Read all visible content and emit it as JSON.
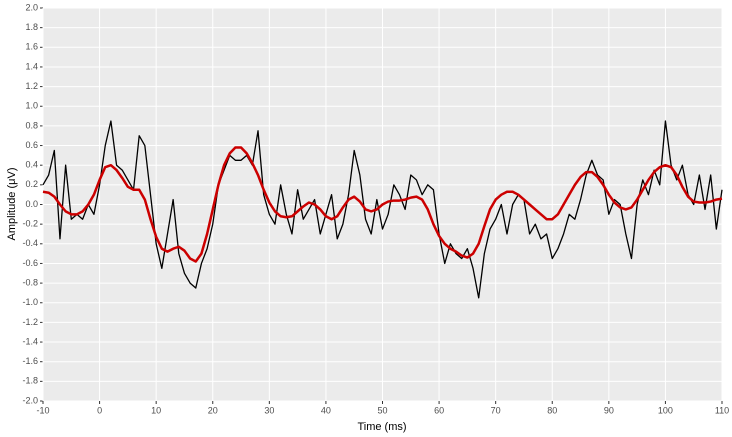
{
  "chart_data": {
    "type": "line",
    "x_label": "Time (ms)",
    "y_label": "Amplitude (μV)",
    "x": [
      -10,
      -9,
      -8,
      -7,
      -6,
      -5,
      -4,
      -3,
      -2,
      -1,
      0,
      1,
      2,
      3,
      4,
      5,
      6,
      7,
      8,
      9,
      10,
      11,
      12,
      13,
      14,
      15,
      16,
      17,
      18,
      19,
      20,
      21,
      22,
      23,
      24,
      25,
      26,
      27,
      28,
      29,
      30,
      31,
      32,
      33,
      34,
      35,
      36,
      37,
      38,
      39,
      40,
      41,
      42,
      43,
      44,
      45,
      46,
      47,
      48,
      49,
      50,
      51,
      52,
      53,
      54,
      55,
      56,
      57,
      58,
      59,
      60,
      61,
      62,
      63,
      64,
      65,
      66,
      67,
      68,
      69,
      70,
      71,
      72,
      73,
      74,
      75,
      76,
      77,
      78,
      79,
      80,
      81,
      82,
      83,
      84,
      85,
      86,
      87,
      88,
      89,
      90,
      91,
      92,
      93,
      94,
      95,
      96,
      97,
      98,
      99,
      100,
      101,
      102,
      103,
      104,
      105,
      106,
      107,
      108,
      109,
      110
    ],
    "series": [
      {
        "color": "#000000",
        "values": [
          0.2,
          0.3,
          0.55,
          -0.35,
          0.4,
          -0.15,
          -0.1,
          -0.15,
          0.0,
          -0.1,
          0.2,
          0.6,
          0.85,
          0.4,
          0.35,
          0.25,
          0.15,
          0.7,
          0.6,
          0.1,
          -0.4,
          -0.65,
          -0.3,
          0.05,
          -0.5,
          -0.7,
          -0.8,
          -0.85,
          -0.6,
          -0.45,
          -0.2,
          0.2,
          0.35,
          0.5,
          0.45,
          0.45,
          0.5,
          0.4,
          0.75,
          0.1,
          -0.1,
          -0.2,
          0.2,
          -0.1,
          -0.3,
          0.15,
          -0.15,
          -0.05,
          0.05,
          -0.3,
          -0.1,
          0.1,
          -0.35,
          -0.2,
          0.1,
          0.55,
          0.3,
          -0.15,
          -0.3,
          0.05,
          -0.25,
          -0.1,
          0.2,
          0.1,
          -0.05,
          0.3,
          0.25,
          0.1,
          0.2,
          0.15,
          -0.3,
          -0.6,
          -0.4,
          -0.5,
          -0.55,
          -0.45,
          -0.65,
          -0.95,
          -0.5,
          -0.25,
          -0.15,
          0.0,
          -0.3,
          0.0,
          0.1,
          0.05,
          -0.3,
          -0.2,
          -0.35,
          -0.3,
          -0.55,
          -0.45,
          -0.3,
          -0.1,
          -0.15,
          0.05,
          0.3,
          0.45,
          0.3,
          0.25,
          -0.1,
          0.05,
          0.0,
          -0.3,
          -0.55,
          0.0,
          0.25,
          0.1,
          0.35,
          0.2,
          0.85,
          0.4,
          0.25,
          0.4,
          0.1,
          0.0,
          0.3,
          -0.05,
          0.3,
          -0.25,
          0.15
        ]
      },
      {
        "color": "#cc0000",
        "values": [
          0.13,
          0.12,
          0.08,
          0.0,
          -0.07,
          -0.1,
          -0.1,
          -0.07,
          0.0,
          0.1,
          0.25,
          0.38,
          0.4,
          0.35,
          0.27,
          0.18,
          0.15,
          0.15,
          0.05,
          -0.15,
          -0.33,
          -0.45,
          -0.48,
          -0.45,
          -0.43,
          -0.47,
          -0.55,
          -0.58,
          -0.5,
          -0.3,
          -0.05,
          0.2,
          0.4,
          0.52,
          0.58,
          0.58,
          0.52,
          0.42,
          0.3,
          0.15,
          0.02,
          -0.07,
          -0.12,
          -0.13,
          -0.12,
          -0.07,
          -0.02,
          0.02,
          0.0,
          -0.05,
          -0.12,
          -0.15,
          -0.12,
          -0.03,
          0.05,
          0.08,
          0.03,
          -0.05,
          -0.07,
          -0.05,
          0.0,
          0.03,
          0.04,
          0.04,
          0.05,
          0.07,
          0.08,
          0.05,
          -0.05,
          -0.2,
          -0.32,
          -0.4,
          -0.45,
          -0.48,
          -0.52,
          -0.54,
          -0.5,
          -0.4,
          -0.22,
          -0.05,
          0.05,
          0.1,
          0.13,
          0.13,
          0.1,
          0.05,
          0.0,
          -0.05,
          -0.1,
          -0.15,
          -0.15,
          -0.1,
          0.0,
          0.1,
          0.2,
          0.28,
          0.33,
          0.33,
          0.28,
          0.2,
          0.1,
          0.02,
          -0.03,
          -0.05,
          -0.03,
          0.05,
          0.15,
          0.25,
          0.33,
          0.38,
          0.4,
          0.38,
          0.3,
          0.18,
          0.08,
          0.03,
          0.02,
          0.02,
          0.03,
          0.05,
          0.06
        ]
      }
    ],
    "xlim": [
      -10,
      110
    ],
    "xticks": [
      -10,
      0,
      10,
      20,
      30,
      40,
      50,
      60,
      70,
      80,
      90,
      100,
      110
    ],
    "ylim": [
      -2,
      2
    ],
    "yticks": [
      {
        "value": -2,
        "label": "-2.0"
      },
      -1.8,
      -1.6,
      -1.4,
      -1.2,
      {
        "value": -1,
        "label": "-1.0"
      },
      -0.8,
      -0.6,
      -0.4,
      -0.2,
      {
        "value": 0,
        "label": "0.0"
      },
      0.2,
      0.4,
      0.6,
      0.8,
      {
        "value": 1,
        "label": "1.0"
      },
      1.2,
      1.4,
      1.6,
      1.8,
      {
        "value": 2,
        "label": "2.0"
      }
    ],
    "grid": true
  }
}
